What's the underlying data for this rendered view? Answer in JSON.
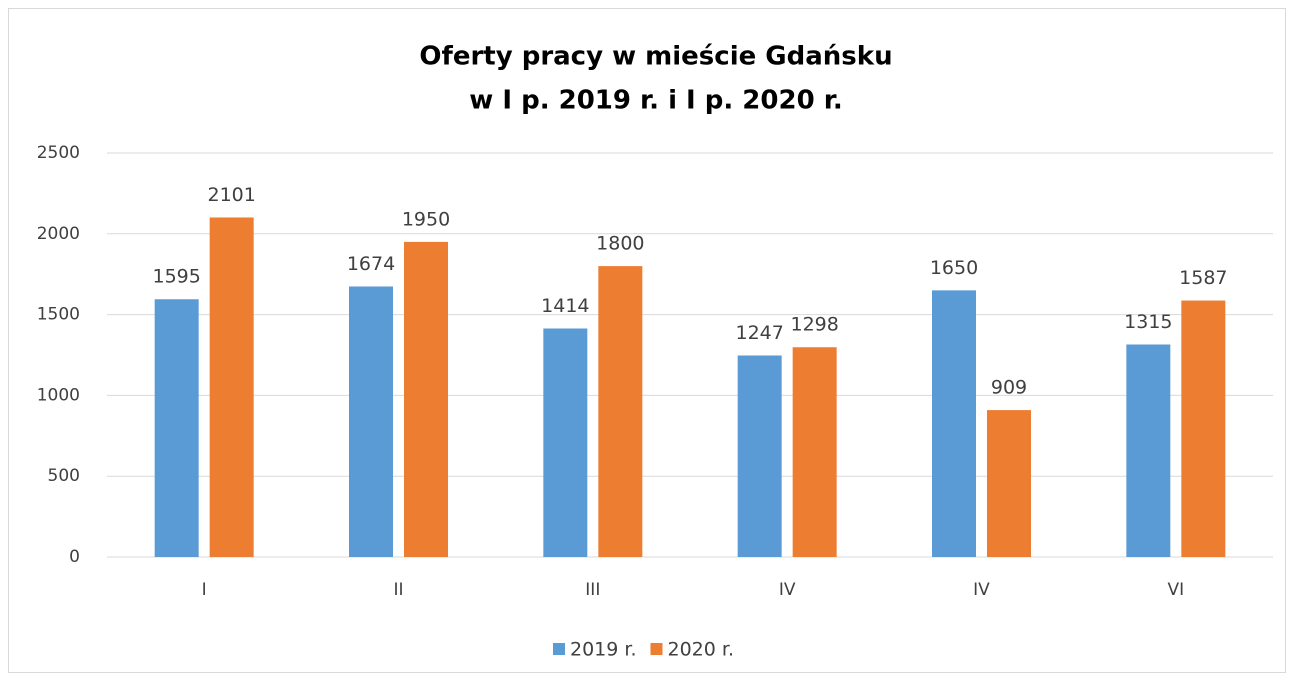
{
  "chart_data": {
    "type": "bar",
    "title": [
      "Oferty pracy w mieście Gdańsku",
      "w I p. 2019 r. i I p. 2020 r."
    ],
    "categories": [
      "I",
      "II",
      "III",
      "IV",
      "IV",
      "VI"
    ],
    "series": [
      {
        "name": "2019 r.",
        "color": "#5b9bd5",
        "values": [
          1595,
          1674,
          1414,
          1247,
          1650,
          1315
        ]
      },
      {
        "name": "2020 r.",
        "color": "#ed7d31",
        "values": [
          2101,
          1950,
          1800,
          1298,
          909,
          1587
        ]
      }
    ],
    "ylim": [
      0,
      2500
    ],
    "yticks": [
      0,
      500,
      1000,
      1500,
      2000,
      2500
    ],
    "grid": true,
    "legend": "bottom"
  }
}
